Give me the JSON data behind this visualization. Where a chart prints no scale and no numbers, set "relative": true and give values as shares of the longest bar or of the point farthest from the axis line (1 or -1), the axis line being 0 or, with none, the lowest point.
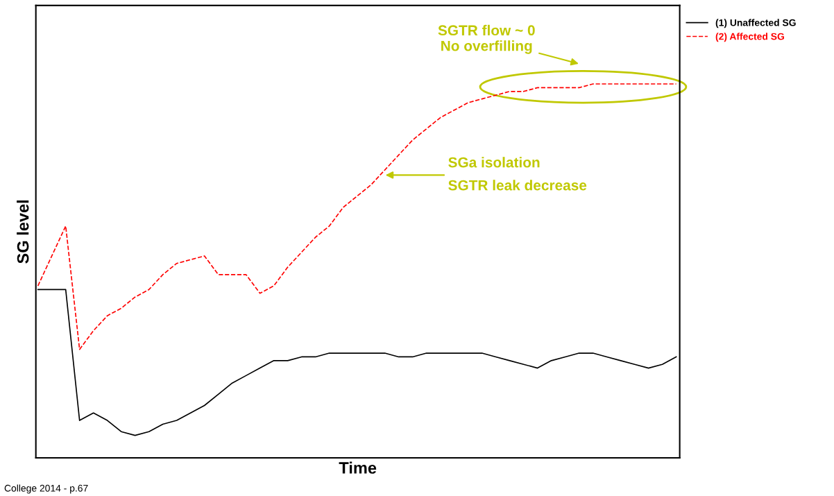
{
  "chart_data": {
    "type": "line",
    "relative": true,
    "xlabel": "Time",
    "ylabel": "SG level",
    "categories": [
      null,
      null,
      null,
      null,
      null,
      null,
      null,
      null,
      null,
      null,
      null,
      null,
      null,
      null,
      null,
      null,
      null,
      null,
      null,
      null,
      null,
      null,
      null,
      null,
      null,
      null,
      null,
      null,
      null,
      null,
      null,
      null,
      null,
      null,
      null,
      null,
      null,
      null,
      null,
      null,
      null,
      null,
      null,
      null,
      null,
      null,
      null
    ],
    "series": [
      {
        "name": "(1) Unaffected SG",
        "color": "#000000",
        "line_style": "solid",
        "values": [
          0.45,
          0.45,
          0.45,
          0.1,
          0.12,
          0.1,
          0.07,
          0.06,
          0.07,
          0.09,
          0.1,
          0.12,
          0.14,
          0.17,
          0.2,
          0.22,
          0.24,
          0.26,
          0.26,
          0.27,
          0.27,
          0.28,
          0.28,
          0.28,
          0.28,
          0.28,
          0.27,
          0.27,
          0.28,
          0.28,
          0.28,
          0.28,
          0.28,
          0.27,
          0.26,
          0.25,
          0.24,
          0.26,
          0.27,
          0.28,
          0.28,
          0.27,
          0.26,
          0.25,
          0.24,
          0.25,
          0.27
        ]
      },
      {
        "name": "(2) Affected SG",
        "color": "#ff0000",
        "line_style": "dashed",
        "values": [
          0.46,
          0.54,
          0.62,
          0.29,
          0.34,
          0.38,
          0.4,
          0.43,
          0.45,
          0.49,
          0.52,
          0.53,
          0.54,
          0.49,
          0.49,
          0.49,
          0.44,
          0.46,
          0.51,
          0.55,
          0.59,
          0.62,
          0.67,
          0.7,
          0.73,
          0.77,
          0.81,
          0.85,
          0.88,
          0.91,
          0.93,
          0.95,
          0.96,
          0.97,
          0.98,
          0.98,
          0.99,
          0.99,
          0.99,
          0.99,
          1.0,
          1.0,
          1.0,
          1.0,
          1.0,
          1.0,
          1.0
        ]
      }
    ],
    "annotations": [
      "SGTR flow ~ 0\nNo overfilling",
      "SGa isolation\nSGTR leak decrease",
      "College 2014 - p.67"
    ],
    "legend": "top right"
  }
}
